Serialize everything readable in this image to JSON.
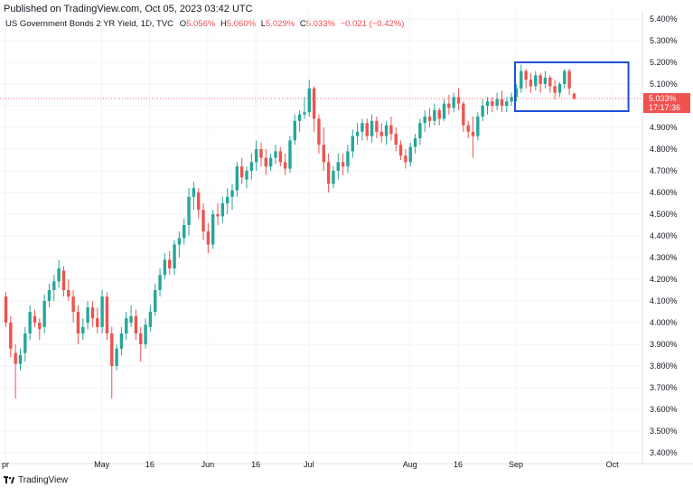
{
  "header": {
    "published": "Published on TradingView.com, Oct 05, 2023 03:42 UTC"
  },
  "legend": {
    "symbol": "US Government Bonds 2 YR Yield, 1D, TVC",
    "open_label": "O",
    "open_value": "5.056%",
    "high_label": "H",
    "high_value": "5.060%",
    "low_label": "L",
    "low_value": "5.029%",
    "close_label": "C",
    "close_value": "5.033%",
    "change": "−0.021 (−0.42%)"
  },
  "price_badge": {
    "price": "5.033%",
    "countdown": "17:17:36"
  },
  "footer": {
    "brand": "TradingView"
  },
  "colors": {
    "up": "#26a69a",
    "down": "#ef5350",
    "box": "#1e4fd8",
    "grid": "#f0f3fa"
  },
  "chart_data": {
    "type": "candlestick",
    "title": "US Government Bonds 2 YR Yield, 1D, TVC",
    "y_unit": "%",
    "ylim": [
      3.38,
      5.44
    ],
    "y_ticks": [
      "5.400%",
      "5.300%",
      "5.200%",
      "5.100%",
      "5.000%",
      "4.900%",
      "4.800%",
      "4.700%",
      "4.600%",
      "4.500%",
      "4.400%",
      "4.300%",
      "4.200%",
      "4.100%",
      "4.000%",
      "3.900%",
      "3.800%",
      "3.700%",
      "3.600%",
      "3.500%",
      "3.400%"
    ],
    "x_ticks": [
      {
        "label": "pr",
        "index": 0
      },
      {
        "label": "May",
        "index": 20
      },
      {
        "label": "16",
        "index": 30
      },
      {
        "label": "Jun",
        "index": 42
      },
      {
        "label": "16",
        "index": 52
      },
      {
        "label": "Jul",
        "index": 63
      },
      {
        "label": "Aug",
        "index": 84
      },
      {
        "label": "16",
        "index": 94
      },
      {
        "label": "Sep",
        "index": 106
      },
      {
        "label": "Oct",
        "index": 126
      }
    ],
    "current_price": 5.033,
    "highlight_box": {
      "start_index": 106,
      "end_index": 129,
      "low": 4.975,
      "high": 5.2
    },
    "candles": [
      [
        4.12,
        4.14,
        3.98,
        4.0
      ],
      [
        4.0,
        4.03,
        3.84,
        3.88
      ],
      [
        3.86,
        3.9,
        3.65,
        3.81
      ],
      [
        3.81,
        3.88,
        3.78,
        3.85
      ],
      [
        3.86,
        3.98,
        3.82,
        3.95
      ],
      [
        3.95,
        4.08,
        3.92,
        4.05
      ],
      [
        4.03,
        4.06,
        3.98,
        4.0
      ],
      [
        4.0,
        4.02,
        3.92,
        3.97
      ],
      [
        3.98,
        4.13,
        3.95,
        4.1
      ],
      [
        4.1,
        4.18,
        4.07,
        4.15
      ],
      [
        4.15,
        4.22,
        4.1,
        4.19
      ],
      [
        4.19,
        4.29,
        4.16,
        4.25
      ],
      [
        4.24,
        4.26,
        4.12,
        4.15
      ],
      [
        4.15,
        4.2,
        4.1,
        4.12
      ],
      [
        4.12,
        4.15,
        4.0,
        4.05
      ],
      [
        4.05,
        4.08,
        3.9,
        3.95
      ],
      [
        3.95,
        4.02,
        3.92,
        3.98
      ],
      [
        4.0,
        4.1,
        3.97,
        4.07
      ],
      [
        4.07,
        4.1,
        3.98,
        4.02
      ],
      [
        4.02,
        4.07,
        3.95,
        3.98
      ],
      [
        3.98,
        4.15,
        3.95,
        4.12
      ],
      [
        4.12,
        4.14,
        3.92,
        3.95
      ],
      [
        3.95,
        3.98,
        3.65,
        3.8
      ],
      [
        3.8,
        3.9,
        3.78,
        3.88
      ],
      [
        3.88,
        3.98,
        3.85,
        3.95
      ],
      [
        3.95,
        4.05,
        3.92,
        4.02
      ],
      [
        4.0,
        4.08,
        3.98,
        4.03
      ],
      [
        4.03,
        4.06,
        3.92,
        3.95
      ],
      [
        3.95,
        3.98,
        3.82,
        3.9
      ],
      [
        3.9,
        4.02,
        3.88,
        3.99
      ],
      [
        3.98,
        4.08,
        3.96,
        4.05
      ],
      [
        4.05,
        4.18,
        4.03,
        4.15
      ],
      [
        4.15,
        4.25,
        4.12,
        4.22
      ],
      [
        4.22,
        4.32,
        4.2,
        4.29
      ],
      [
        4.29,
        4.33,
        4.22,
        4.25
      ],
      [
        4.25,
        4.38,
        4.22,
        4.36
      ],
      [
        4.36,
        4.42,
        4.3,
        4.39
      ],
      [
        4.39,
        4.48,
        4.36,
        4.45
      ],
      [
        4.45,
        4.62,
        4.4,
        4.58
      ],
      [
        4.58,
        4.65,
        4.52,
        4.62
      ],
      [
        4.6,
        4.62,
        4.48,
        4.52
      ],
      [
        4.52,
        4.55,
        4.38,
        4.42
      ],
      [
        4.42,
        4.46,
        4.32,
        4.36
      ],
      [
        4.36,
        4.52,
        4.34,
        4.5
      ],
      [
        4.5,
        4.55,
        4.45,
        4.49
      ],
      [
        4.49,
        4.58,
        4.46,
        4.55
      ],
      [
        4.55,
        4.62,
        4.5,
        4.58
      ],
      [
        4.58,
        4.64,
        4.52,
        4.61
      ],
      [
        4.61,
        4.74,
        4.58,
        4.72
      ],
      [
        4.72,
        4.76,
        4.64,
        4.67
      ],
      [
        4.66,
        4.72,
        4.62,
        4.7
      ],
      [
        4.7,
        4.78,
        4.66,
        4.74
      ],
      [
        4.74,
        4.84,
        4.7,
        4.8
      ],
      [
        4.8,
        4.83,
        4.72,
        4.76
      ],
      [
        4.76,
        4.8,
        4.68,
        4.72
      ],
      [
        4.72,
        4.78,
        4.7,
        4.76
      ],
      [
        4.76,
        4.82,
        4.73,
        4.79
      ],
      [
        4.79,
        4.81,
        4.72,
        4.74
      ],
      [
        4.74,
        4.78,
        4.68,
        4.71
      ],
      [
        4.71,
        4.86,
        4.69,
        4.84
      ],
      [
        4.84,
        4.96,
        4.82,
        4.93
      ],
      [
        4.93,
        4.98,
        4.88,
        4.96
      ],
      [
        4.96,
        5.04,
        4.94,
        4.97
      ],
      [
        4.97,
        5.12,
        4.95,
        5.08
      ],
      [
        5.08,
        5.09,
        4.88,
        4.94
      ],
      [
        4.94,
        4.96,
        4.78,
        4.82
      ],
      [
        4.82,
        4.9,
        4.7,
        4.74
      ],
      [
        4.74,
        4.78,
        4.6,
        4.64
      ],
      [
        4.64,
        4.72,
        4.62,
        4.7
      ],
      [
        4.7,
        4.78,
        4.66,
        4.74
      ],
      [
        4.74,
        4.78,
        4.68,
        4.72
      ],
      [
        4.72,
        4.82,
        4.69,
        4.79
      ],
      [
        4.79,
        4.89,
        4.76,
        4.86
      ],
      [
        4.86,
        4.92,
        4.82,
        4.88
      ],
      [
        4.88,
        4.94,
        4.84,
        4.92
      ],
      [
        4.92,
        4.94,
        4.84,
        4.86
      ],
      [
        4.86,
        4.96,
        4.83,
        4.93
      ],
      [
        4.93,
        4.95,
        4.85,
        4.88
      ],
      [
        4.88,
        4.92,
        4.83,
        4.86
      ],
      [
        4.86,
        4.93,
        4.82,
        4.91
      ],
      [
        4.91,
        4.95,
        4.84,
        4.87
      ],
      [
        4.87,
        4.9,
        4.79,
        4.82
      ],
      [
        4.82,
        4.84,
        4.75,
        4.77
      ],
      [
        4.77,
        4.8,
        4.71,
        4.74
      ],
      [
        4.74,
        4.83,
        4.72,
        4.81
      ],
      [
        4.81,
        4.87,
        4.78,
        4.85
      ],
      [
        4.85,
        4.94,
        4.82,
        4.92
      ],
      [
        4.92,
        4.98,
        4.88,
        4.95
      ],
      [
        4.95,
        4.99,
        4.9,
        4.93
      ],
      [
        4.93,
        5.01,
        4.91,
        4.98
      ],
      [
        4.98,
        4.99,
        4.91,
        4.94
      ],
      [
        4.94,
        5.03,
        4.93,
        5.01
      ],
      [
        5.01,
        5.05,
        4.96,
        4.99
      ],
      [
        4.99,
        5.06,
        4.97,
        5.04
      ],
      [
        5.04,
        5.08,
        4.98,
        5.01
      ],
      [
        5.01,
        5.02,
        4.88,
        4.91
      ],
      [
        4.91,
        4.93,
        4.85,
        4.88
      ],
      [
        4.88,
        4.95,
        4.76,
        4.86
      ],
      [
        4.86,
        4.97,
        4.84,
        4.95
      ],
      [
        4.95,
        5.03,
        4.93,
        5.0
      ],
      [
        5.0,
        5.04,
        4.96,
        5.02
      ],
      [
        5.02,
        5.04,
        4.97,
        5.0
      ],
      [
        5.0,
        5.06,
        4.98,
        5.03
      ],
      [
        5.03,
        5.07,
        4.97,
        5.0
      ],
      [
        5.0,
        5.04,
        4.97,
        5.02
      ],
      [
        5.02,
        5.06,
        5.0,
        5.04
      ],
      [
        5.04,
        5.1,
        5.02,
        5.08
      ],
      [
        5.08,
        5.19,
        5.06,
        5.16
      ],
      [
        5.16,
        5.17,
        5.08,
        5.12
      ],
      [
        5.12,
        5.15,
        5.06,
        5.09
      ],
      [
        5.09,
        5.16,
        5.07,
        5.14
      ],
      [
        5.14,
        5.15,
        5.06,
        5.1
      ],
      [
        5.1,
        5.16,
        5.08,
        5.13
      ],
      [
        5.13,
        5.14,
        5.06,
        5.09
      ],
      [
        5.09,
        5.12,
        5.03,
        5.06
      ],
      [
        5.06,
        5.11,
        5.04,
        5.1
      ],
      [
        5.1,
        5.17,
        5.08,
        5.16
      ],
      [
        5.16,
        5.17,
        5.05,
        5.08
      ],
      [
        5.056,
        5.06,
        5.029,
        5.033
      ]
    ]
  }
}
